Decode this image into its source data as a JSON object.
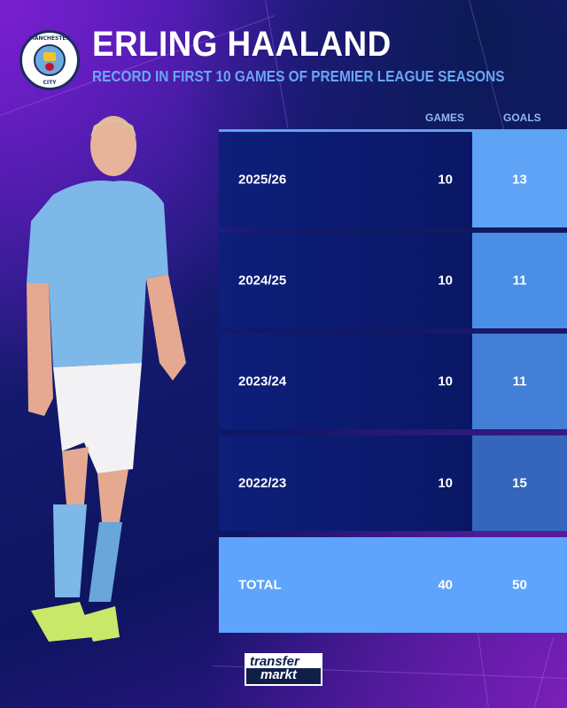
{
  "header": {
    "title": "ERLING HAALAND",
    "subtitle": "RECORD IN FIRST 10 GAMES OF PREMIER LEAGUE SEASONS",
    "crest": {
      "top_text": "MANCHESTER",
      "bottom_text": "CITY"
    }
  },
  "table": {
    "columns": [
      "GAMES",
      "GOALS"
    ],
    "rows": [
      {
        "season": "2025/26",
        "games": "10",
        "goals": "13",
        "goal_color": "#5ea3f5"
      },
      {
        "season": "2024/25",
        "games": "10",
        "goals": "11",
        "goal_color": "#4a8ee6"
      },
      {
        "season": "2023/24",
        "games": "10",
        "goals": "11",
        "goal_color": "#437fd6"
      },
      {
        "season": "2022/23",
        "games": "10",
        "goals": "15",
        "goal_color": "#3466bb"
      }
    ],
    "total": {
      "label": "TOTAL",
      "games": "40",
      "goals": "50"
    }
  },
  "footer": {
    "logo_top": "transfer",
    "logo_bottom": "markt"
  },
  "colors": {
    "accent": "#5ea3fc",
    "row_bg": "#0d1f7a",
    "subtitle": "#6aa6f2"
  }
}
